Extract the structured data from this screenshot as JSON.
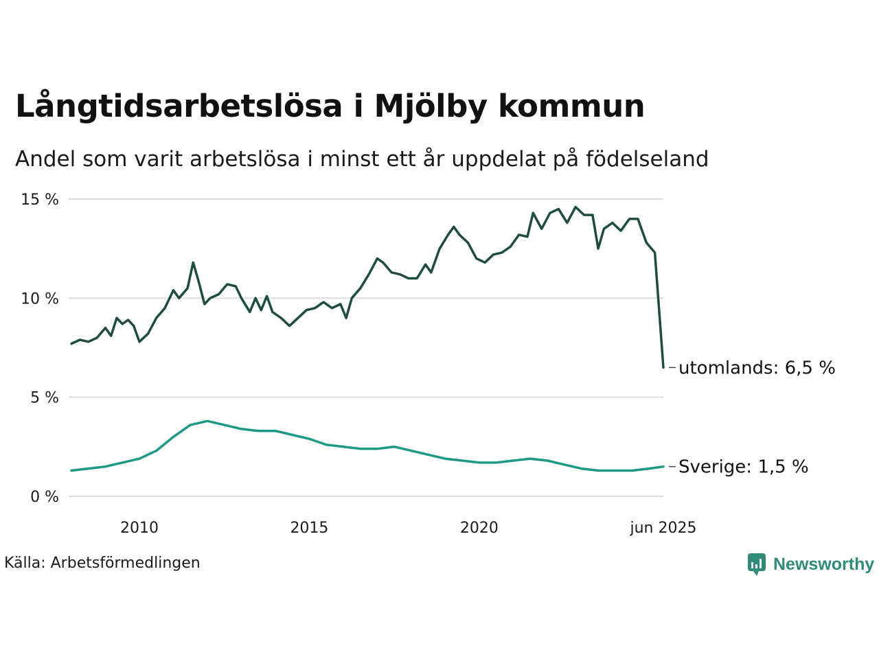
{
  "title": "Långtidsarbetslösa i Mjölby kommun",
  "subtitle": "Andel som varit arbetslösa i minst ett år uppdelat på födelseland",
  "source": "Källa: Arbetsförmedlingen",
  "brand": "Newsworthy",
  "colors": {
    "utomlands": "#1e4d40",
    "sverige": "#1c9a87",
    "grid": "#dddddd",
    "brand": "#2e8c78"
  },
  "chart_data": {
    "type": "line",
    "title": "Långtidsarbetslösa i Mjölby kommun",
    "subtitle": "Andel som varit arbetslösa i minst ett år uppdelat på födelseland",
    "ylim": [
      0,
      15
    ],
    "xlim": [
      "2008-01",
      "2025-06"
    ],
    "y_ticks": [
      "0 %",
      "5 %",
      "10 %",
      "15 %"
    ],
    "x_ticks": [
      {
        "date": "2010-01",
        "label": "2010"
      },
      {
        "date": "2015-01",
        "label": "2015"
      },
      {
        "date": "2020-01",
        "label": "2020"
      },
      {
        "date": "2025-06",
        "label": "jun 2025"
      }
    ],
    "grid": true,
    "series": [
      {
        "name": "utomlands",
        "end_label": "utomlands: 6,5 %",
        "points": [
          [
            "2008-01",
            7.7
          ],
          [
            "2008-04",
            7.9
          ],
          [
            "2008-07",
            7.8
          ],
          [
            "2008-10",
            8.0
          ],
          [
            "2009-01",
            8.5
          ],
          [
            "2009-03",
            8.1
          ],
          [
            "2009-05",
            9.0
          ],
          [
            "2009-07",
            8.7
          ],
          [
            "2009-09",
            8.9
          ],
          [
            "2009-11",
            8.6
          ],
          [
            "2010-01",
            7.8
          ],
          [
            "2010-04",
            8.2
          ],
          [
            "2010-07",
            9.0
          ],
          [
            "2010-10",
            9.5
          ],
          [
            "2011-01",
            10.4
          ],
          [
            "2011-03",
            10.0
          ],
          [
            "2011-06",
            10.5
          ],
          [
            "2011-08",
            11.8
          ],
          [
            "2011-10",
            10.8
          ],
          [
            "2011-12",
            9.7
          ],
          [
            "2012-02",
            10.0
          ],
          [
            "2012-05",
            10.2
          ],
          [
            "2012-08",
            10.7
          ],
          [
            "2012-11",
            10.6
          ],
          [
            "2013-01",
            10.0
          ],
          [
            "2013-04",
            9.3
          ],
          [
            "2013-06",
            10.0
          ],
          [
            "2013-08",
            9.4
          ],
          [
            "2013-10",
            10.1
          ],
          [
            "2013-12",
            9.3
          ],
          [
            "2014-03",
            9.0
          ],
          [
            "2014-06",
            8.6
          ],
          [
            "2014-09",
            9.0
          ],
          [
            "2014-12",
            9.4
          ],
          [
            "2015-03",
            9.5
          ],
          [
            "2015-06",
            9.8
          ],
          [
            "2015-09",
            9.5
          ],
          [
            "2015-12",
            9.7
          ],
          [
            "2016-02",
            9.0
          ],
          [
            "2016-04",
            10.0
          ],
          [
            "2016-07",
            10.5
          ],
          [
            "2016-10",
            11.2
          ],
          [
            "2017-01",
            12.0
          ],
          [
            "2017-03",
            11.8
          ],
          [
            "2017-06",
            11.3
          ],
          [
            "2017-09",
            11.2
          ],
          [
            "2017-12",
            11.0
          ],
          [
            "2018-03",
            11.0
          ],
          [
            "2018-06",
            11.7
          ],
          [
            "2018-08",
            11.3
          ],
          [
            "2018-11",
            12.5
          ],
          [
            "2019-02",
            13.2
          ],
          [
            "2019-04",
            13.6
          ],
          [
            "2019-06",
            13.2
          ],
          [
            "2019-09",
            12.8
          ],
          [
            "2019-12",
            12.0
          ],
          [
            "2020-03",
            11.8
          ],
          [
            "2020-06",
            12.2
          ],
          [
            "2020-09",
            12.3
          ],
          [
            "2020-12",
            12.6
          ],
          [
            "2021-03",
            13.2
          ],
          [
            "2021-06",
            13.1
          ],
          [
            "2021-08",
            14.3
          ],
          [
            "2021-11",
            13.5
          ],
          [
            "2022-02",
            14.3
          ],
          [
            "2022-05",
            14.5
          ],
          [
            "2022-08",
            13.8
          ],
          [
            "2022-11",
            14.6
          ],
          [
            "2023-02",
            14.2
          ],
          [
            "2023-05",
            14.2
          ],
          [
            "2023-07",
            12.5
          ],
          [
            "2023-09",
            13.5
          ],
          [
            "2023-12",
            13.8
          ],
          [
            "2024-03",
            13.4
          ],
          [
            "2024-06",
            14.0
          ],
          [
            "2024-09",
            14.0
          ],
          [
            "2024-12",
            12.8
          ],
          [
            "2025-03",
            12.3
          ],
          [
            "2025-06",
            6.5
          ]
        ]
      },
      {
        "name": "Sverige",
        "end_label": "Sverige: 1,5 %",
        "points": [
          [
            "2008-01",
            1.3
          ],
          [
            "2008-07",
            1.4
          ],
          [
            "2009-01",
            1.5
          ],
          [
            "2009-07",
            1.7
          ],
          [
            "2010-01",
            1.9
          ],
          [
            "2010-07",
            2.3
          ],
          [
            "2011-01",
            3.0
          ],
          [
            "2011-07",
            3.6
          ],
          [
            "2012-01",
            3.8
          ],
          [
            "2012-07",
            3.6
          ],
          [
            "2013-01",
            3.4
          ],
          [
            "2013-07",
            3.3
          ],
          [
            "2014-01",
            3.3
          ],
          [
            "2014-07",
            3.1
          ],
          [
            "2015-01",
            2.9
          ],
          [
            "2015-07",
            2.6
          ],
          [
            "2016-01",
            2.5
          ],
          [
            "2016-07",
            2.4
          ],
          [
            "2017-01",
            2.4
          ],
          [
            "2017-07",
            2.5
          ],
          [
            "2018-01",
            2.3
          ],
          [
            "2018-07",
            2.1
          ],
          [
            "2019-01",
            1.9
          ],
          [
            "2019-07",
            1.8
          ],
          [
            "2020-01",
            1.7
          ],
          [
            "2020-07",
            1.7
          ],
          [
            "2021-01",
            1.8
          ],
          [
            "2021-07",
            1.9
          ],
          [
            "2022-01",
            1.8
          ],
          [
            "2022-07",
            1.6
          ],
          [
            "2023-01",
            1.4
          ],
          [
            "2023-07",
            1.3
          ],
          [
            "2024-01",
            1.3
          ],
          [
            "2024-07",
            1.3
          ],
          [
            "2025-01",
            1.4
          ],
          [
            "2025-06",
            1.5
          ]
        ]
      }
    ]
  }
}
